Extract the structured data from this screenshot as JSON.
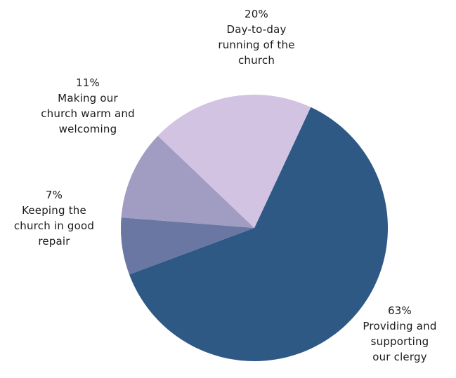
{
  "chart_data": {
    "type": "pie",
    "title": "",
    "slices": [
      {
        "key": "clergy",
        "percent_label": "63%",
        "label_lines": [
          "Providing and",
          "supporting",
          "our clergy"
        ],
        "value": 63,
        "color": "#2f5985"
      },
      {
        "key": "repair",
        "percent_label": "7%",
        "label_lines": [
          "Keeping the",
          "church in good",
          "repair"
        ],
        "value": 7,
        "color": "#6a77a3"
      },
      {
        "key": "warm",
        "percent_label": "11%",
        "label_lines": [
          "Making our",
          "church warm and",
          "welcoming"
        ],
        "value": 11,
        "color": "#a09cc2"
      },
      {
        "key": "day_to_day",
        "percent_label": "20%",
        "label_lines": [
          "Day-to-day",
          "running of the",
          "church"
        ],
        "value": 20,
        "color": "#d2c3e3"
      }
    ]
  }
}
